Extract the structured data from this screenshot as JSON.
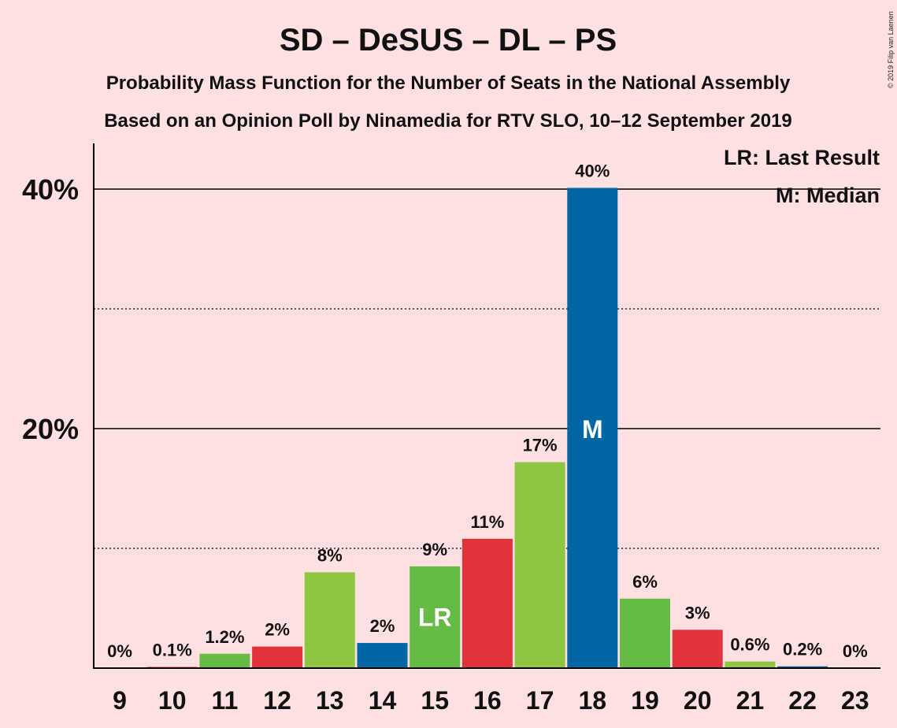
{
  "copyright": "© 2019 Filip van Laenen",
  "legend": {
    "lr": "LR: Last Result",
    "m": "M: Median"
  },
  "colors": {
    "background": "#FFE0E0",
    "red": "#E3333A",
    "green_light": "#8DC63F",
    "green": "#66BB44",
    "blue": "#0066A4"
  },
  "chart_data": {
    "type": "bar",
    "title": "SD – DeSUS – DL – PS",
    "subtitle": "Probability Mass Function for the Number of Seats in the National Assembly",
    "subtitle2": "Based on an Opinion Poll by Ninamedia for RTV SLO, 10–12 September 2019",
    "xlabel": "",
    "ylabel": "",
    "ylim": [
      0,
      44
    ],
    "yticks": [
      {
        "value": 20,
        "label": "20%"
      },
      {
        "value": 40,
        "label": "40%"
      }
    ],
    "minor_gridlines": [
      10,
      30
    ],
    "categories": [
      "9",
      "10",
      "11",
      "12",
      "13",
      "14",
      "15",
      "16",
      "17",
      "18",
      "19",
      "20",
      "21",
      "22",
      "23"
    ],
    "values": [
      0,
      0.1,
      1.2,
      1.8,
      8,
      2.1,
      8.5,
      10.8,
      17.2,
      40.1,
      5.8,
      3.2,
      0.55,
      0.15,
      0
    ],
    "labels": [
      "0%",
      "0.1%",
      "1.2%",
      "2%",
      "8%",
      "2%",
      "9%",
      "11%",
      "17%",
      "40%",
      "6%",
      "3%",
      "0.6%",
      "0.2%",
      "0%"
    ],
    "colors": [
      "#66BB44",
      "#E3333A",
      "#66BB44",
      "#E3333A",
      "#8DC63F",
      "#0066A4",
      "#66BB44",
      "#E3333A",
      "#8DC63F",
      "#0066A4",
      "#66BB44",
      "#E3333A",
      "#8DC63F",
      "#0066A4",
      "#66BB44"
    ],
    "markers": [
      {
        "category": "15",
        "text": "LR"
      },
      {
        "category": "18",
        "text": "M"
      }
    ],
    "grid": true,
    "legend_position": "top-right"
  }
}
